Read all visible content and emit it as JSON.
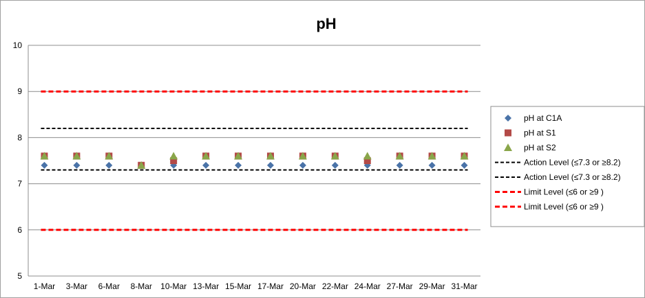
{
  "chart_data": {
    "type": "scatter",
    "title": "pH",
    "xlabel": "",
    "ylabel": "",
    "ylim": [
      5,
      10
    ],
    "yticks": [
      "5",
      "6",
      "7",
      "8",
      "9",
      "10"
    ],
    "categories": [
      "1-Mar",
      "3-Mar",
      "6-Mar",
      "8-Mar",
      "10-Mar",
      "13-Mar",
      "15-Mar",
      "17-Mar",
      "20-Mar",
      "22-Mar",
      "24-Mar",
      "27-Mar",
      "29-Mar",
      "31-Mar"
    ],
    "grid": "horizontal",
    "legend_position": "right",
    "series": [
      {
        "name": "pH at C1A",
        "marker": "diamond",
        "color": "#4a73a8",
        "values": [
          7.4,
          7.4,
          7.4,
          null,
          7.4,
          7.4,
          7.4,
          7.4,
          7.4,
          7.4,
          7.4,
          7.4,
          7.4,
          7.4
        ]
      },
      {
        "name": "pH at S1",
        "marker": "square",
        "color": "#b34a47",
        "values": [
          7.6,
          7.6,
          7.6,
          7.4,
          7.5,
          7.6,
          7.6,
          7.6,
          7.6,
          7.6,
          7.5,
          7.6,
          7.6,
          7.6
        ]
      },
      {
        "name": "pH at S2",
        "marker": "triangle",
        "color": "#8aa64a",
        "values": [
          7.6,
          7.6,
          7.6,
          7.4,
          7.6,
          7.6,
          7.6,
          7.6,
          7.6,
          7.6,
          7.6,
          7.6,
          7.6,
          7.6
        ]
      }
    ],
    "reference_lines": [
      {
        "name": "Action Level (≤7.3 or ≥8.2)",
        "value": 8.2,
        "color": "#000000",
        "style": "dashed"
      },
      {
        "name": "Action Level (≤7.3 or ≥8.2)",
        "value": 7.3,
        "color": "#000000",
        "style": "dashed"
      },
      {
        "name": "Limit Level (≤6 or ≥9 )",
        "value": 9,
        "color": "#ff0000",
        "style": "dashed"
      },
      {
        "name": "Limit Level (≤6 or ≥9 )",
        "value": 6,
        "color": "#ff0000",
        "style": "dashed"
      }
    ]
  }
}
